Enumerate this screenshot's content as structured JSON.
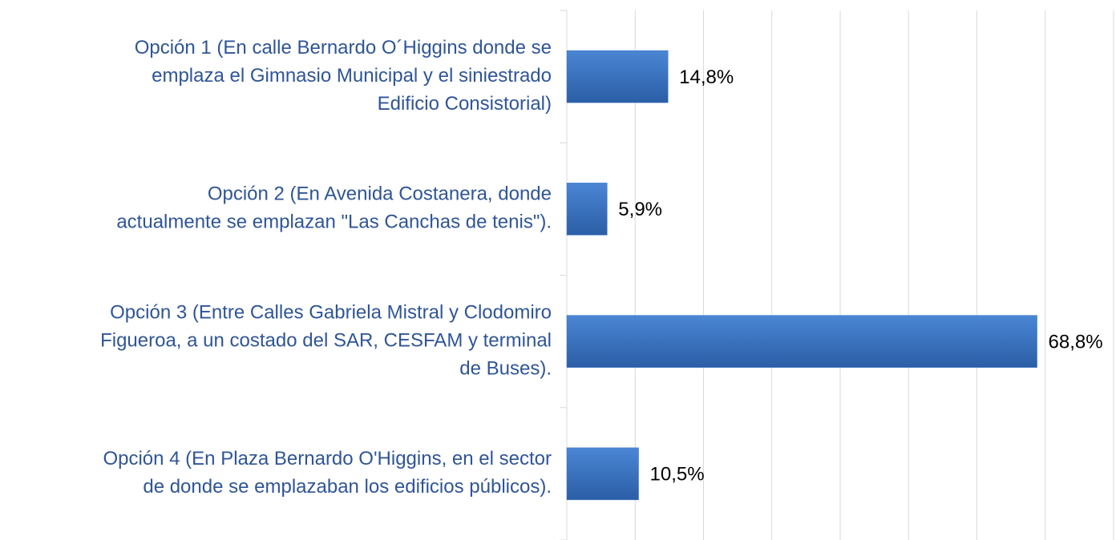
{
  "chart_data": {
    "type": "barh",
    "categories": [
      [
        "Opción 1 (En calle Bernardo O´Higgins donde se",
        "emplaza el Gimnasio Municipal y el siniestrado",
        "Edificio Consistorial)"
      ],
      [
        "Opción 2 (En Avenida Costanera, donde",
        "actualmente se emplazan \"Las Canchas de tenis\")."
      ],
      [
        "Opción 3 (Entre Calles Gabriela Mistral y Clodomiro",
        "Figueroa, a un costado del SAR, CESFAM y terminal",
        "de Buses)."
      ],
      [
        "Opción 4 (En Plaza Bernardo O'Higgins, en el sector",
        "de donde se emplazaban los edificios públicos)."
      ]
    ],
    "values": [
      14.8,
      5.9,
      68.8,
      10.5
    ],
    "value_labels": [
      "14,8%",
      "5,9%",
      "68,8%",
      "10,5%"
    ],
    "color": "#3a75c4",
    "xlim": [
      0,
      80
    ],
    "xticks": [
      0,
      10,
      20,
      30,
      40,
      50,
      60,
      70,
      80
    ],
    "grid": true
  }
}
